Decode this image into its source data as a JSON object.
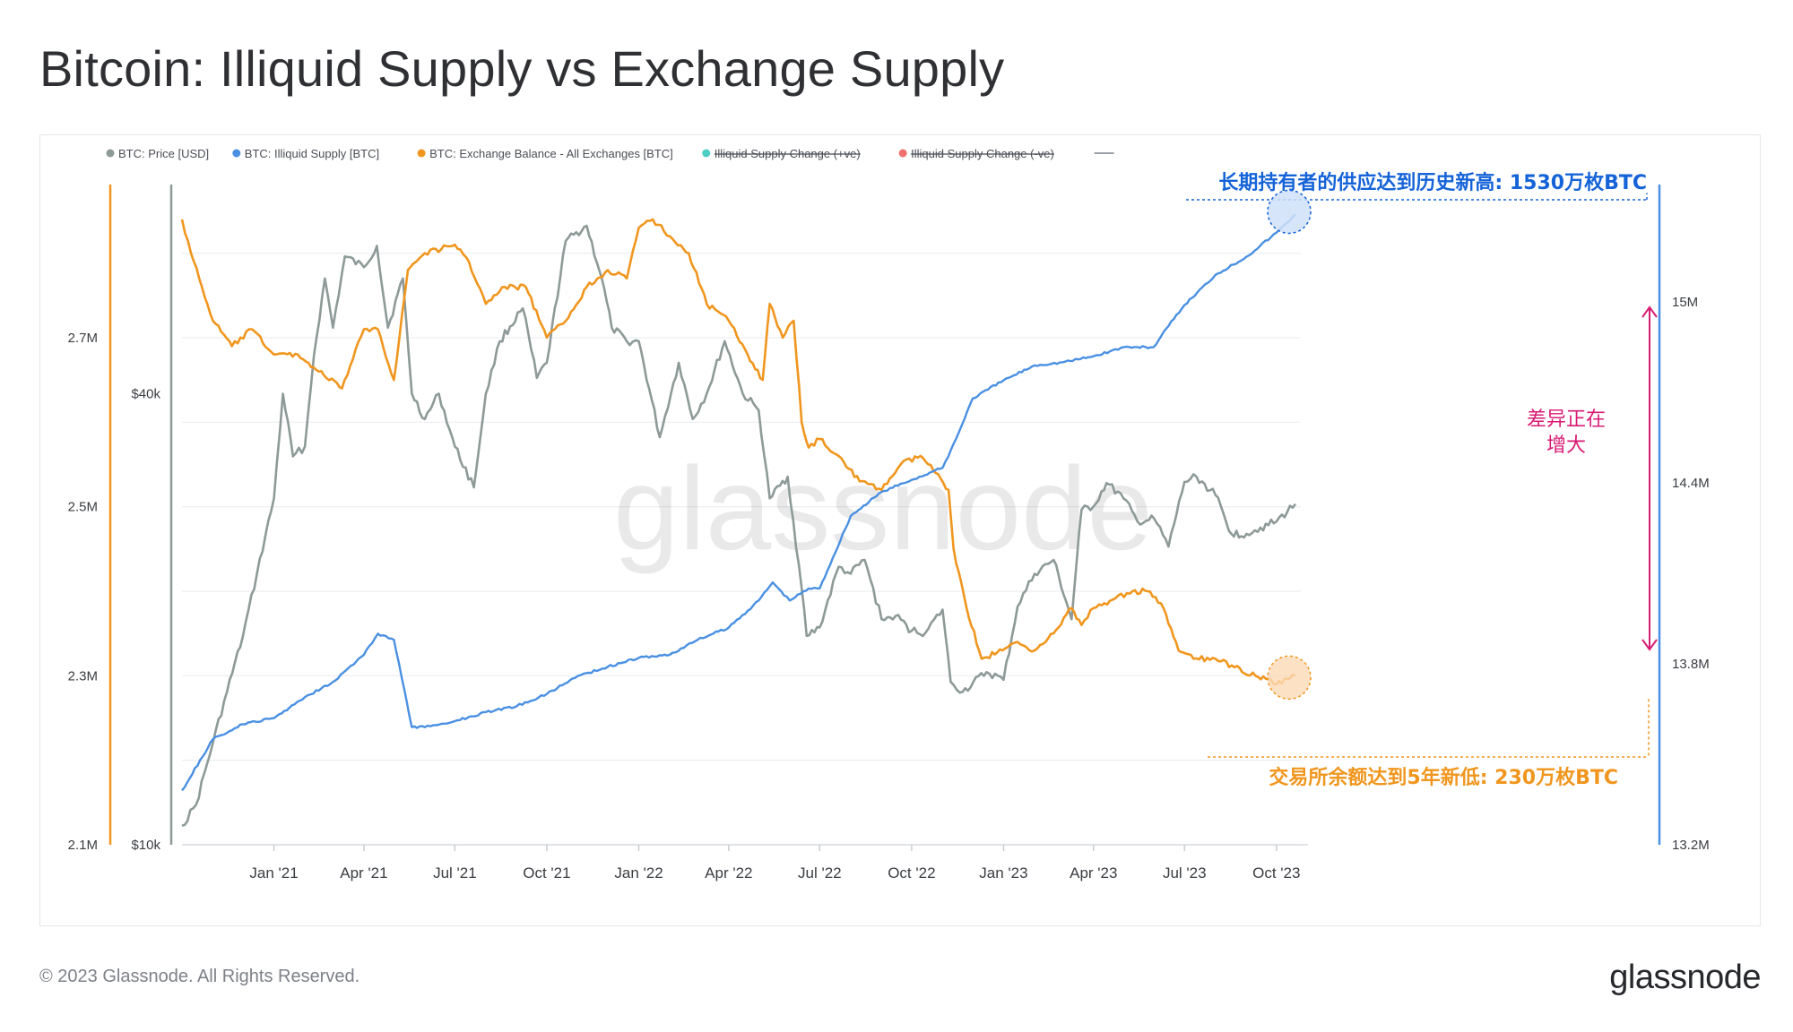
{
  "title": "Bitcoin: Illiquid Supply vs Exchange Supply",
  "footer": {
    "copyright": "© 2023 Glassnode. All Rights Reserved.",
    "logo": "glassnode"
  },
  "watermark": "glassnode",
  "colors": {
    "price": "#8e9a98",
    "illiquid": "#4a90e2",
    "exchange": "#f0961e",
    "increase": "#4ecdc4",
    "decrease": "#ef6f6c",
    "annotation_blue": "#1563d8",
    "annotation_orange": "#f0961e",
    "annotation_pink": "#d81b73"
  },
  "legend": [
    {
      "label": "BTC: Price [USD]",
      "color": "#8e9a98",
      "strike": false
    },
    {
      "label": "BTC: Illiquid Supply [BTC]",
      "color": "#4a90e2",
      "strike": false
    },
    {
      "label": "BTC: Exchange Balance - All Exchanges [BTC]",
      "color": "#f0961e",
      "strike": false
    },
    {
      "label": "Illiquid Supply Change (+ve)",
      "color": "#4ecdc4",
      "strike": true
    },
    {
      "label": "Illiquid Supply Change (-ve)",
      "color": "#ef6f6c",
      "strike": true
    }
  ],
  "annotations": {
    "top": "长期持有者的供应达到历史新高: 1530万枚BTC",
    "bottom": "交易所余额达到5年新低: 230万枚BTC",
    "gap": [
      "差异正在",
      "增大"
    ]
  },
  "chart_data": {
    "type": "line",
    "title": "Bitcoin: Illiquid Supply vs Exchange Supply",
    "x_ticks": [
      "Jan '21",
      "Apr '21",
      "Jul '21",
      "Oct '21",
      "Jan '22",
      "Apr '22",
      "Jul '22",
      "Oct '22",
      "Jan '23",
      "Apr '23",
      "Jul '23",
      "Oct '23"
    ],
    "axes": {
      "exchange_left": {
        "ticks": [
          "2.1M",
          "2.3M",
          "2.5M",
          "2.7M"
        ],
        "values": [
          2100000,
          2300000,
          2500000,
          2700000
        ],
        "range": [
          2100000,
          2860000
        ]
      },
      "price_left": {
        "ticks": [
          "$10k",
          "$40k"
        ],
        "values": [
          10000,
          40000
        ],
        "scale": "log",
        "range": [
          10000,
          72000
        ]
      },
      "illiquid_right": {
        "ticks": [
          "13.2M",
          "13.8M",
          "14.4M",
          "15M"
        ],
        "values": [
          13200000,
          13800000,
          14400000,
          15000000
        ],
        "range": [
          13200000,
          15330000
        ]
      }
    },
    "x_range": [
      "2020-10-01",
      "2023-10-20"
    ],
    "series": [
      {
        "name": "BTC: Price [USD]",
        "axis": "price_left",
        "x": [
          "2020-10-01",
          "2020-10-15",
          "2020-11-01",
          "2020-11-15",
          "2020-12-01",
          "2020-12-15",
          "2021-01-01",
          "2021-01-10",
          "2021-01-20",
          "2021-02-01",
          "2021-02-10",
          "2021-02-21",
          "2021-03-01",
          "2021-03-13",
          "2021-04-01",
          "2021-04-14",
          "2021-04-25",
          "2021-05-10",
          "2021-05-19",
          "2021-06-01",
          "2021-06-15",
          "2021-07-01",
          "2021-07-20",
          "2021-08-01",
          "2021-08-15",
          "2021-09-07",
          "2021-09-21",
          "2021-10-01",
          "2021-10-20",
          "2021-11-10",
          "2021-11-25",
          "2021-12-05",
          "2021-12-20",
          "2022-01-01",
          "2022-01-22",
          "2022-02-10",
          "2022-02-24",
          "2022-03-10",
          "2022-03-28",
          "2022-04-15",
          "2022-05-01",
          "2022-05-12",
          "2022-05-30",
          "2022-06-13",
          "2022-06-18",
          "2022-07-01",
          "2022-07-20",
          "2022-08-01",
          "2022-08-15",
          "2022-09-01",
          "2022-09-15",
          "2022-10-01",
          "2022-10-15",
          "2022-11-01",
          "2022-11-09",
          "2022-11-21",
          "2022-12-15",
          "2023-01-01",
          "2023-01-15",
          "2023-02-01",
          "2023-02-20",
          "2023-03-10",
          "2023-03-20",
          "2023-04-01",
          "2023-04-14",
          "2023-05-01",
          "2023-05-15",
          "2023-06-01",
          "2023-06-15",
          "2023-07-01",
          "2023-07-13",
          "2023-08-01",
          "2023-08-17",
          "2023-09-01",
          "2023-09-15",
          "2023-10-01",
          "2023-10-20"
        ],
        "values": [
          10600,
          11300,
          13700,
          16000,
          19000,
          23000,
          29000,
          40000,
          33000,
          34000,
          45000,
          57000,
          49000,
          61000,
          59000,
          63000,
          49000,
          57000,
          40000,
          37000,
          40000,
          34000,
          30000,
          40000,
          47000,
          52000,
          42000,
          44000,
          64000,
          67000,
          57000,
          49000,
          47000,
          47000,
          35000,
          44000,
          37000,
          40000,
          47000,
          40000,
          38000,
          29000,
          31000,
          22000,
          19000,
          19500,
          23500,
          23000,
          24000,
          20000,
          20200,
          19300,
          19200,
          20600,
          16500,
          16000,
          17000,
          16600,
          20800,
          23000,
          24000,
          20000,
          28000,
          28300,
          30400,
          29000,
          27000,
          27200,
          25000,
          30500,
          31000,
          29300,
          26000,
          26000,
          26500,
          27000,
          28500
        ]
      },
      {
        "name": "BTC: Illiquid Supply [BTC]",
        "axis": "illiquid_right",
        "x": [
          "2020-10-01",
          "2020-11-01",
          "2020-12-01",
          "2021-01-01",
          "2021-02-01",
          "2021-03-01",
          "2021-04-01",
          "2021-04-15",
          "2021-05-01",
          "2021-05-19",
          "2021-06-01",
          "2021-07-01",
          "2021-08-01",
          "2021-09-01",
          "2021-10-01",
          "2021-11-01",
          "2021-12-01",
          "2022-01-01",
          "2022-02-01",
          "2022-03-01",
          "2022-04-01",
          "2022-05-01",
          "2022-05-15",
          "2022-06-01",
          "2022-06-20",
          "2022-07-01",
          "2022-08-01",
          "2022-09-01",
          "2022-10-01",
          "2022-11-01",
          "2022-11-15",
          "2022-12-01",
          "2023-01-01",
          "2023-02-01",
          "2023-03-01",
          "2023-04-01",
          "2023-05-01",
          "2023-05-31",
          "2023-06-15",
          "2023-07-01",
          "2023-08-01",
          "2023-09-01",
          "2023-10-01",
          "2023-10-20"
        ],
        "values": [
          13380000,
          13550000,
          13600000,
          13620000,
          13690000,
          13740000,
          13830000,
          13900000,
          13880000,
          13590000,
          13590000,
          13610000,
          13640000,
          13660000,
          13700000,
          13760000,
          13790000,
          13820000,
          13830000,
          13880000,
          13920000,
          14010000,
          14070000,
          14010000,
          14050000,
          14050000,
          14290000,
          14370000,
          14410000,
          14450000,
          14550000,
          14680000,
          14740000,
          14790000,
          14800000,
          14820000,
          14850000,
          14850000,
          14920000,
          14990000,
          15090000,
          15150000,
          15230000,
          15290000
        ]
      },
      {
        "name": "BTC: Exchange Balance - All Exchanges [BTC]",
        "axis": "exchange_left",
        "x": [
          "2020-10-01",
          "2020-10-10",
          "2020-11-01",
          "2020-11-20",
          "2020-12-10",
          "2021-01-01",
          "2021-01-25",
          "2021-02-15",
          "2021-03-10",
          "2021-04-01",
          "2021-04-15",
          "2021-05-01",
          "2021-05-15",
          "2021-06-01",
          "2021-07-01",
          "2021-07-15",
          "2021-08-01",
          "2021-08-20",
          "2021-09-10",
          "2021-10-01",
          "2021-10-20",
          "2021-11-10",
          "2021-12-01",
          "2021-12-20",
          "2022-01-01",
          "2022-01-15",
          "2022-02-01",
          "2022-02-20",
          "2022-03-10",
          "2022-04-01",
          "2022-04-20",
          "2022-05-05",
          "2022-05-12",
          "2022-05-25",
          "2022-06-05",
          "2022-06-13",
          "2022-06-20",
          "2022-07-01",
          "2022-07-20",
          "2022-08-10",
          "2022-09-01",
          "2022-09-20",
          "2022-10-10",
          "2022-10-25",
          "2022-11-07",
          "2022-11-12",
          "2022-11-25",
          "2022-12-10",
          "2022-12-31",
          "2023-01-15",
          "2023-02-01",
          "2023-02-20",
          "2023-03-10",
          "2023-03-20",
          "2023-04-01",
          "2023-04-20",
          "2023-05-10",
          "2023-05-25",
          "2023-06-10",
          "2023-06-25",
          "2023-07-10",
          "2023-08-01",
          "2023-08-20",
          "2023-09-10",
          "2023-10-01",
          "2023-10-20"
        ],
        "values": [
          2840000,
          2800000,
          2720000,
          2690000,
          2710000,
          2680000,
          2680000,
          2660000,
          2640000,
          2710000,
          2710000,
          2650000,
          2780000,
          2800000,
          2810000,
          2790000,
          2740000,
          2760000,
          2760000,
          2700000,
          2720000,
          2760000,
          2780000,
          2770000,
          2830000,
          2840000,
          2820000,
          2800000,
          2740000,
          2720000,
          2680000,
          2650000,
          2740000,
          2700000,
          2720000,
          2600000,
          2570000,
          2580000,
          2560000,
          2530000,
          2520000,
          2550000,
          2560000,
          2540000,
          2520000,
          2450000,
          2380000,
          2320000,
          2330000,
          2340000,
          2330000,
          2350000,
          2380000,
          2360000,
          2380000,
          2390000,
          2400000,
          2400000,
          2380000,
          2330000,
          2320000,
          2320000,
          2310000,
          2300000,
          2290000,
          2300000
        ]
      }
    ]
  }
}
